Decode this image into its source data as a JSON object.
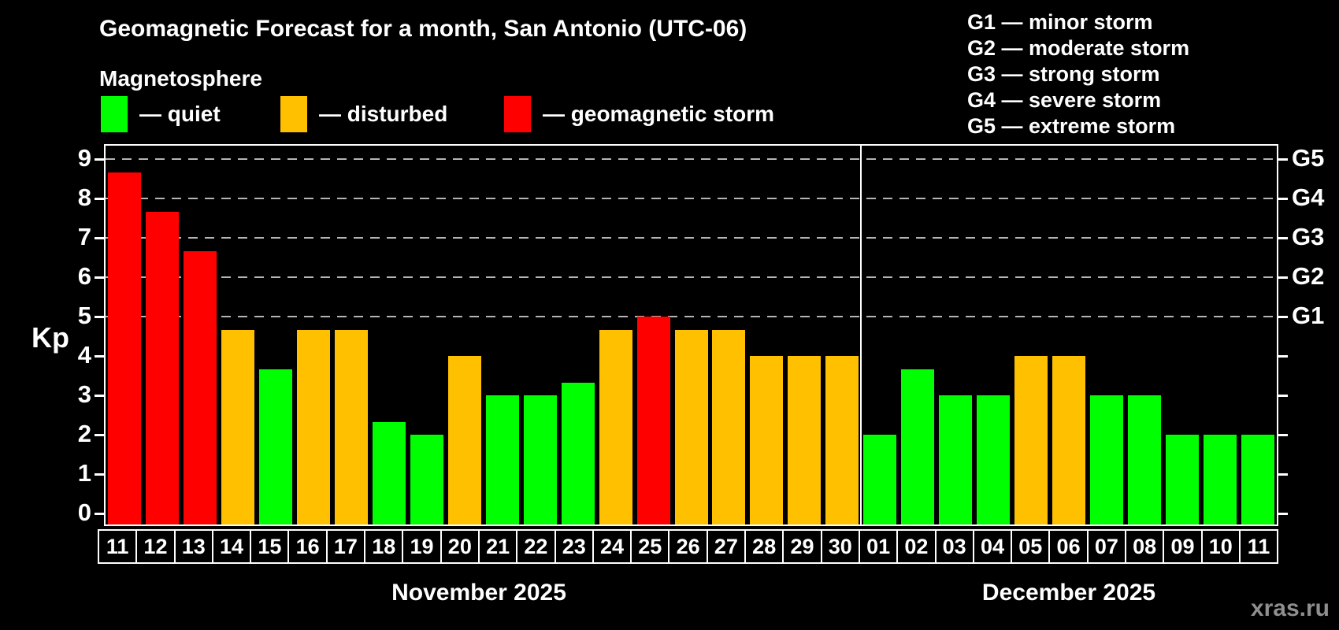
{
  "header": {
    "title": "Geomagnetic Forecast for a month, San Antonio (UTC-06)",
    "subtitle": "Magnetosphere"
  },
  "legend": {
    "items": [
      {
        "key": "quiet",
        "label": "— quiet",
        "color": "#00ff00"
      },
      {
        "key": "disturbed",
        "label": "— disturbed",
        "color": "#ffc000"
      },
      {
        "key": "storm",
        "label": "— geomagnetic storm",
        "color": "#ff0000"
      }
    ]
  },
  "g_scale_legend": {
    "lines": [
      "G1 — minor storm",
      "G2 — moderate storm",
      "G3 — strong storm",
      "G4 — severe storm",
      "G5 — extreme storm"
    ]
  },
  "watermark": "xras.ru",
  "chart_data": {
    "type": "bar",
    "title": "Geomagnetic Forecast for a month, San Antonio (UTC-06)",
    "subtitle": "Magnetosphere",
    "ylabel": "Kp",
    "xlabel": "",
    "ylim": [
      0,
      9.4
    ],
    "yticks": [
      0,
      1,
      2,
      3,
      4,
      5,
      6,
      7,
      8,
      9
    ],
    "grid": "horizontal dashed lines at Kp 5-9 (G1-G5 storm levels)",
    "gridlines_at": [
      5,
      6,
      7,
      8,
      9
    ],
    "right_axis": [
      {
        "kp": 5,
        "label": "G1"
      },
      {
        "kp": 6,
        "label": "G2"
      },
      {
        "kp": 7,
        "label": "G3"
      },
      {
        "kp": 8,
        "label": "G4"
      },
      {
        "kp": 9,
        "label": "G5"
      }
    ],
    "colors": {
      "quiet": "#00ff00",
      "disturbed": "#ffc000",
      "storm": "#ff0000"
    },
    "groups": [
      {
        "label": "November 2025",
        "days": [
          "11",
          "12",
          "13",
          "14",
          "15",
          "16",
          "17",
          "18",
          "19",
          "20",
          "21",
          "22",
          "23",
          "24",
          "25",
          "26",
          "27",
          "28",
          "29",
          "30"
        ],
        "values": [
          8.67,
          7.67,
          6.67,
          4.67,
          3.67,
          4.67,
          4.67,
          2.33,
          2.0,
          4.0,
          3.0,
          3.0,
          3.33,
          4.67,
          5.0,
          4.67,
          4.67,
          4.0,
          4.0,
          4.0
        ],
        "status": [
          "storm",
          "storm",
          "storm",
          "disturbed",
          "quiet",
          "disturbed",
          "disturbed",
          "quiet",
          "quiet",
          "disturbed",
          "quiet",
          "quiet",
          "quiet",
          "disturbed",
          "storm",
          "disturbed",
          "disturbed",
          "disturbed",
          "disturbed",
          "disturbed"
        ]
      },
      {
        "label": "December 2025",
        "days": [
          "01",
          "02",
          "03",
          "04",
          "05",
          "06",
          "07",
          "08",
          "09",
          "10",
          "11"
        ],
        "values": [
          2.0,
          3.67,
          3.0,
          3.0,
          4.0,
          4.0,
          3.0,
          3.0,
          2.0,
          2.0,
          2.0
        ],
        "status": [
          "quiet",
          "quiet",
          "quiet",
          "quiet",
          "disturbed",
          "disturbed",
          "quiet",
          "quiet",
          "quiet",
          "quiet",
          "quiet"
        ]
      }
    ]
  }
}
